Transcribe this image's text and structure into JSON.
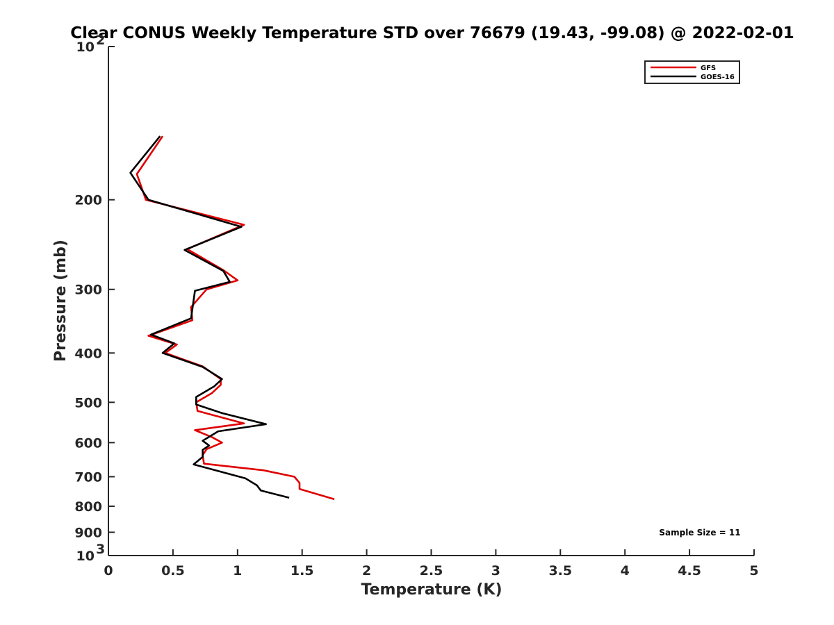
{
  "chart_data": {
    "type": "line",
    "title": "Clear CONUS Weekly Temperature STD over 76679 (19.43, -99.08) @ 2022-02-01",
    "xlabel": "Temperature (K)",
    "ylabel": "Pressure (mb)",
    "xlim": [
      0,
      5
    ],
    "ylim": [
      100,
      1000
    ],
    "y_scale": "log",
    "y_reversed": true,
    "grid": false,
    "legend_position": "top-right",
    "x_ticks": [
      {
        "value": 0,
        "label": "0"
      },
      {
        "value": 0.5,
        "label": "0.5"
      },
      {
        "value": 1,
        "label": "1"
      },
      {
        "value": 1.5,
        "label": "1.5"
      },
      {
        "value": 2,
        "label": "2"
      },
      {
        "value": 2.5,
        "label": "2.5"
      },
      {
        "value": 3,
        "label": "3"
      },
      {
        "value": 3.5,
        "label": "3.5"
      },
      {
        "value": 4,
        "label": "4"
      },
      {
        "value": 4.5,
        "label": "4.5"
      },
      {
        "value": 5,
        "label": "5"
      }
    ],
    "y_ticks": [
      {
        "value": 100,
        "base": "10",
        "exp": "2"
      },
      {
        "value": 200,
        "label": "200"
      },
      {
        "value": 300,
        "label": "300"
      },
      {
        "value": 400,
        "label": "400"
      },
      {
        "value": 500,
        "label": "500"
      },
      {
        "value": 600,
        "label": "600"
      },
      {
        "value": 700,
        "label": "700"
      },
      {
        "value": 800,
        "label": "800"
      },
      {
        "value": 900,
        "label": "900"
      },
      {
        "value": 1000,
        "base": "10",
        "exp": "3"
      }
    ],
    "series": [
      {
        "name": "GFS",
        "color": "#e00000",
        "points": [
          {
            "x": 0.42,
            "y": 150
          },
          {
            "x": 0.22,
            "y": 178
          },
          {
            "x": 0.29,
            "y": 200
          },
          {
            "x": 1.05,
            "y": 224
          },
          {
            "x": 0.61,
            "y": 250
          },
          {
            "x": 0.89,
            "y": 275
          },
          {
            "x": 1.0,
            "y": 288
          },
          {
            "x": 0.76,
            "y": 300
          },
          {
            "x": 0.64,
            "y": 325
          },
          {
            "x": 0.65,
            "y": 345
          },
          {
            "x": 0.31,
            "y": 370
          },
          {
            "x": 0.53,
            "y": 385
          },
          {
            "x": 0.44,
            "y": 400
          },
          {
            "x": 0.73,
            "y": 425
          },
          {
            "x": 0.87,
            "y": 450
          },
          {
            "x": 0.87,
            "y": 462
          },
          {
            "x": 0.8,
            "y": 480
          },
          {
            "x": 0.68,
            "y": 500
          },
          {
            "x": 0.69,
            "y": 520
          },
          {
            "x": 1.05,
            "y": 550
          },
          {
            "x": 0.67,
            "y": 567
          },
          {
            "x": 0.8,
            "y": 585
          },
          {
            "x": 0.88,
            "y": 600
          },
          {
            "x": 0.76,
            "y": 618
          },
          {
            "x": 0.73,
            "y": 635
          },
          {
            "x": 0.74,
            "y": 660
          },
          {
            "x": 1.2,
            "y": 680
          },
          {
            "x": 1.44,
            "y": 700
          },
          {
            "x": 1.48,
            "y": 720
          },
          {
            "x": 1.48,
            "y": 740
          },
          {
            "x": 1.75,
            "y": 775
          }
        ]
      },
      {
        "name": "GOES-16",
        "color": "#000000",
        "points": [
          {
            "x": 0.4,
            "y": 150
          },
          {
            "x": 0.17,
            "y": 177
          },
          {
            "x": 0.31,
            "y": 200
          },
          {
            "x": 1.03,
            "y": 226
          },
          {
            "x": 0.59,
            "y": 251
          },
          {
            "x": 0.89,
            "y": 276
          },
          {
            "x": 0.94,
            "y": 290
          },
          {
            "x": 0.67,
            "y": 302
          },
          {
            "x": 0.64,
            "y": 342
          },
          {
            "x": 0.33,
            "y": 368
          },
          {
            "x": 0.51,
            "y": 383
          },
          {
            "x": 0.42,
            "y": 400
          },
          {
            "x": 0.73,
            "y": 426
          },
          {
            "x": 0.88,
            "y": 450
          },
          {
            "x": 0.82,
            "y": 465
          },
          {
            "x": 0.68,
            "y": 488
          },
          {
            "x": 0.68,
            "y": 505
          },
          {
            "x": 0.88,
            "y": 525
          },
          {
            "x": 1.22,
            "y": 552
          },
          {
            "x": 0.85,
            "y": 570
          },
          {
            "x": 0.73,
            "y": 595
          },
          {
            "x": 0.78,
            "y": 608
          },
          {
            "x": 0.73,
            "y": 620
          },
          {
            "x": 0.73,
            "y": 640
          },
          {
            "x": 0.66,
            "y": 662
          },
          {
            "x": 1.06,
            "y": 705
          },
          {
            "x": 1.15,
            "y": 728
          },
          {
            "x": 1.18,
            "y": 745
          },
          {
            "x": 1.4,
            "y": 770
          }
        ]
      }
    ],
    "annotations": [
      {
        "text": "Sample Size = 11",
        "position": "bottom-right"
      }
    ]
  }
}
